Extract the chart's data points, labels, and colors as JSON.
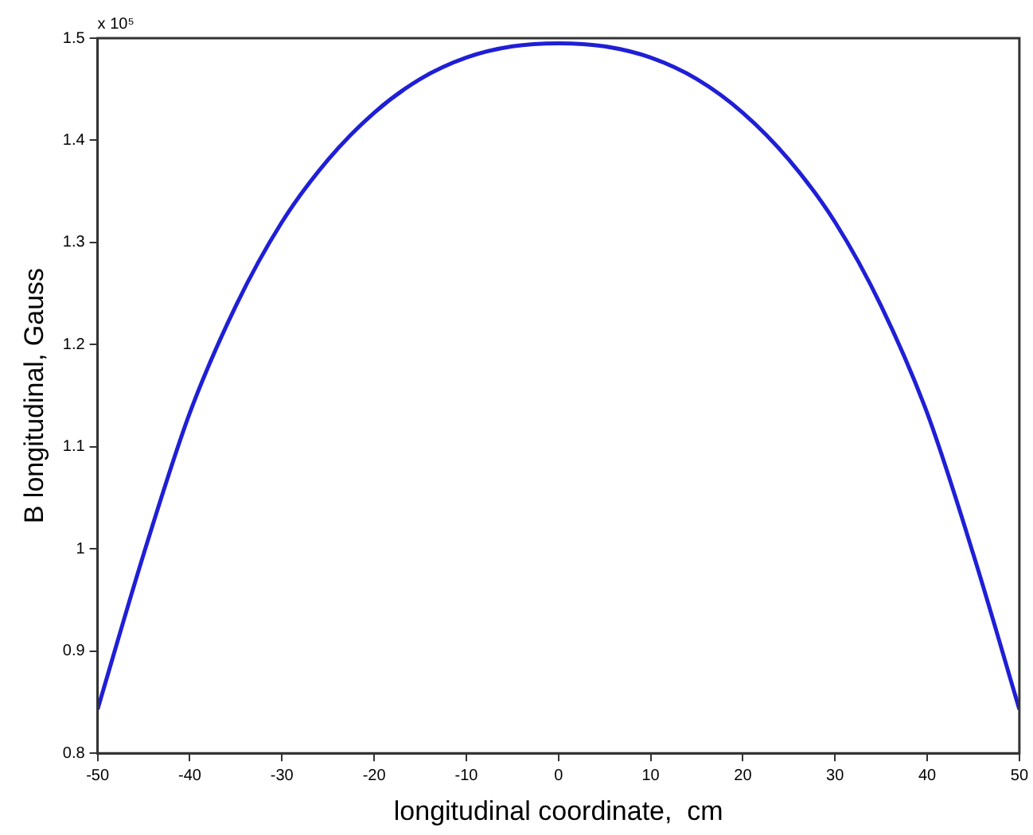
{
  "chart_data": {
    "type": "line",
    "xlabel": "longitudinal coordinate,  cm",
    "ylabel": "B longitudinal, Gauss",
    "annotations": [
      "x 10⁵"
    ],
    "x": [
      -50,
      -45,
      -40,
      -35,
      -30,
      -25,
      -20,
      -15,
      -10,
      -5,
      0,
      5,
      10,
      15,
      20,
      25,
      30,
      35,
      40,
      45,
      50
    ],
    "series": [
      {
        "color": "#1f1fd6",
        "values": [
          0.843,
          0.995,
          1.133,
          1.238,
          1.32,
          1.381,
          1.427,
          1.46,
          1.481,
          1.492,
          1.495,
          1.492,
          1.481,
          1.46,
          1.427,
          1.381,
          1.32,
          1.238,
          1.133,
          0.995,
          0.843
        ]
      }
    ],
    "xlim": [
      -50,
      50
    ],
    "xticks": [
      -50,
      -40,
      -30,
      -20,
      -10,
      0,
      10,
      20,
      30,
      40,
      50
    ],
    "ylim": [
      0.8,
      1.5
    ],
    "yticks": [
      0.8,
      0.9,
      1,
      1.1,
      1.2,
      1.3,
      1.4,
      1.5
    ],
    "grid": false,
    "legend": false,
    "marker": "none",
    "line_style": "solid"
  }
}
